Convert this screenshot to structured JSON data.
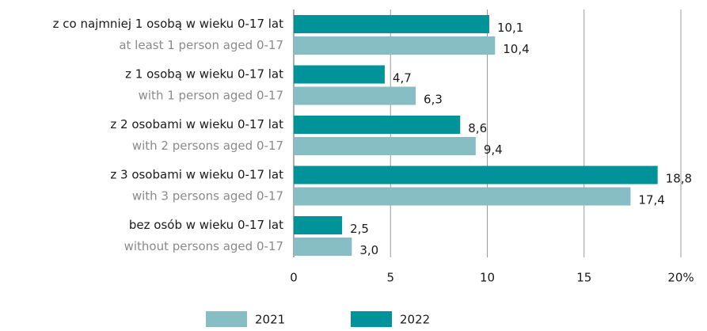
{
  "chart_data": {
    "type": "barh",
    "categories": [
      "z co najmniej 1 osobą w wieku 0-17 lat",
      "z 1 osobą w wieku 0-17 lat",
      "z 2 osobami w wieku 0-17 lat",
      "z 3 osobami w wieku 0-17 lat",
      "bez osób w wieku 0-17 lat"
    ],
    "categories_en": [
      "at least 1 person aged 0-17",
      "with 1 person aged 0-17",
      "with 2 persons aged 0-17",
      "with 3 persons aged 0-17",
      "without persons aged 0-17"
    ],
    "series": [
      {
        "name": "2021",
        "color": "#86bec4",
        "values": [
          10.4,
          6.3,
          9.4,
          17.4,
          3.0
        ],
        "value_labels": [
          "10,4",
          "6,3",
          "9,4",
          "17,4",
          "3,0"
        ]
      },
      {
        "name": "2022",
        "color": "#00939a",
        "values": [
          10.1,
          4.7,
          8.6,
          18.8,
          2.5
        ],
        "value_labels": [
          "10,1",
          "4,7",
          "8,6",
          "18,8",
          "2,5"
        ]
      }
    ],
    "xlim": [
      0,
      20
    ],
    "xticks": [
      0,
      5,
      10,
      15,
      {
        "value": 20,
        "label": "20%"
      }
    ],
    "grid": true
  }
}
